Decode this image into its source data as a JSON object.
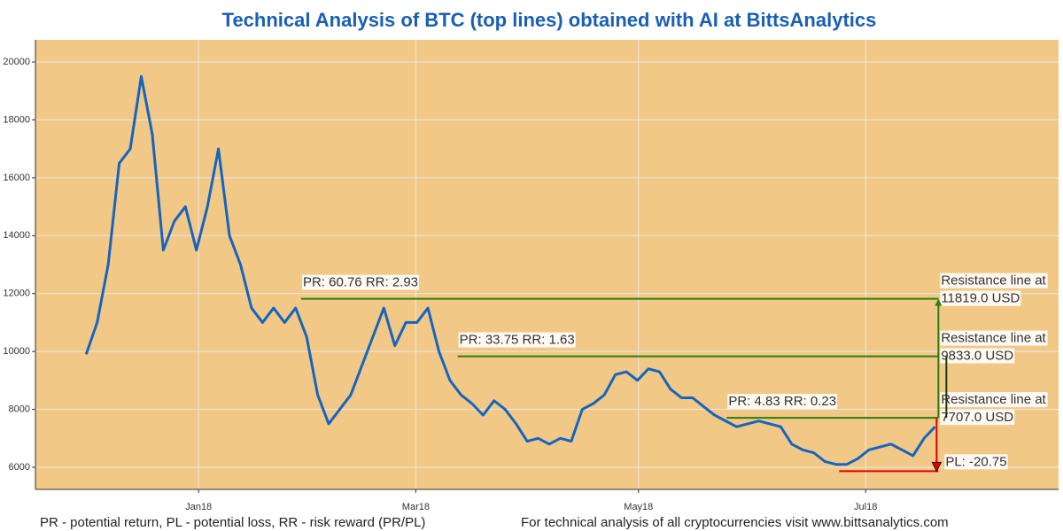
{
  "chart_data": {
    "type": "line",
    "title": "Technical Analysis of BTC (top lines) obtained with AI at BittsAnalytics",
    "series": [
      {
        "name": "BTC",
        "color": "#1565c0",
        "values": [
          9900,
          11000,
          13000,
          16500,
          17000,
          19500,
          17500,
          13500,
          14500,
          15000,
          13500,
          15000,
          17000,
          14000,
          13000,
          11500,
          11000,
          11500,
          11000,
          11500,
          10500,
          8500,
          7500,
          8000,
          8500,
          9500,
          10500,
          11500,
          10200,
          11000,
          11000,
          11500,
          10000,
          9000,
          8500,
          8200,
          7800,
          8300,
          8000,
          7500,
          6900,
          7000,
          6800,
          7000,
          6900,
          8000,
          8200,
          8500,
          9200,
          9300,
          9000,
          9400,
          9300,
          8700,
          8400,
          8400,
          8100,
          7800,
          7600,
          7400,
          7500,
          7600,
          7500,
          7400,
          6800,
          6600,
          6500,
          6200,
          6100,
          6100,
          6300,
          6600,
          6700,
          6800,
          6600,
          6400,
          7000,
          7400
        ]
      }
    ],
    "xlim": [
      -4.6,
      88.2
    ],
    "xticks": [
      {
        "value": 10.2,
        "label": "Jan18"
      },
      {
        "value": 29.9,
        "label": "Mar18"
      },
      {
        "value": 50.1,
        "label": "May18"
      },
      {
        "value": 70.7,
        "label": "Jul18"
      }
    ],
    "ylim": [
      5235,
      20765
    ],
    "yticks": [
      6000,
      8000,
      10000,
      12000,
      14000,
      16000,
      18000,
      20000
    ],
    "grid": true,
    "background": "#f2c886",
    "resistance": [
      {
        "value": 11819,
        "x_start": 19.5,
        "label": "PR: 60.76 RR: 2.93",
        "text": [
          "Resistance line at",
          "11819.0 USD"
        ]
      },
      {
        "value": 9833,
        "x_start": 33.7,
        "label": "PR: 33.75 RR: 1.63",
        "text": [
          "Resistance line at",
          "9833.0 USD"
        ]
      },
      {
        "value": 7707,
        "x_start": 58.1,
        "label": "PR: 4.83 RR: 0.23",
        "text": [
          "Resistance line at",
          "7707.0 USD"
        ]
      }
    ],
    "resistance_color": "#2e7d10",
    "loss": {
      "value": 5865,
      "x_start": 68.3,
      "label": "PL: -20.75",
      "color": "#e00000"
    },
    "x_end": 77.3,
    "footer_left": "PR - potential return, PL - potential loss, RR - risk reward (PR/PL)",
    "footer_right": "For technical analysis of all cryptocurrencies visit www.bittsanalytics.com"
  }
}
